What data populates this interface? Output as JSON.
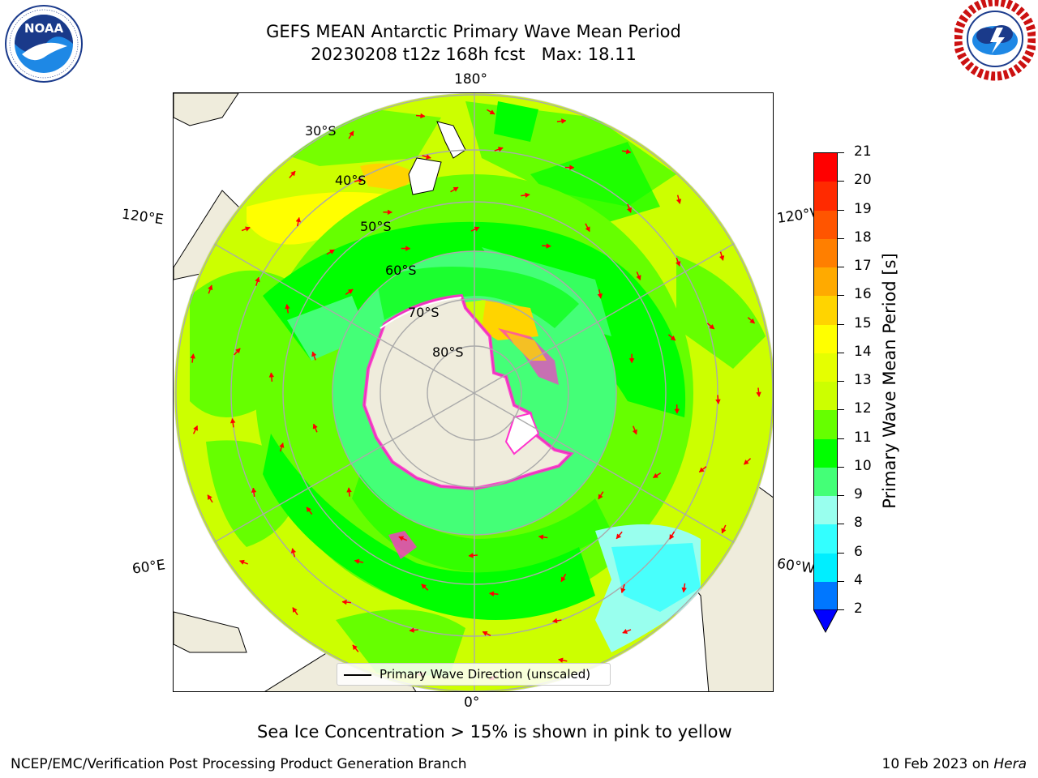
{
  "title": {
    "line1": "GEFS MEAN Antarctic Primary Wave Mean Period",
    "line2": "20230208 t12z 168h fcst   Max: 18.11"
  },
  "logos": {
    "left": {
      "name": "NOAA",
      "ring_text": "NATIONAL OCEANIC AND ATMOSPHERIC ADMINISTRATION · U.S. DEPARTMENT OF COMMERCE"
    },
    "right": {
      "ring_text": "NATIONAL WEATHER SERVICE"
    }
  },
  "map": {
    "projection": "south-polar-stereographic",
    "longitude_labels": {
      "top": "180°",
      "bottom": "0°",
      "upper_left": "120°E",
      "upper_right": "120°W",
      "lower_left": "60°E",
      "lower_right": "60°W"
    },
    "latitude_labels": [
      "30°S",
      "40°S",
      "50°S",
      "60°S",
      "70°S",
      "80°S"
    ],
    "legend": "Primary Wave Direction (unscaled)"
  },
  "colorbar": {
    "label": "Primary Wave Mean Period [s]",
    "ticks": [
      "21",
      "20",
      "19",
      "18",
      "17",
      "16",
      "15",
      "14",
      "13",
      "12",
      "11",
      "10",
      "9",
      "8",
      "6",
      "4",
      "2"
    ],
    "colors_top_to_bottom": [
      "#ff0000",
      "#ff2a00",
      "#ff5500",
      "#ff7f00",
      "#ffaa00",
      "#ffd400",
      "#ffff00",
      "#e5ff00",
      "#ccff00",
      "#66ff00",
      "#00ff00",
      "#44ff77",
      "#99ffee",
      "#33ffff",
      "#00eeff",
      "#0077ff"
    ],
    "extend_color": "#0000ff"
  },
  "chart_data": {
    "type": "heatmap",
    "variable": "Primary Wave Mean Period",
    "units": "s",
    "max": 18.11,
    "color_levels": [
      2,
      4,
      6,
      8,
      9,
      10,
      11,
      12,
      13,
      14,
      15,
      16,
      17,
      18,
      19,
      20,
      21
    ],
    "overlay": "Primary Wave Direction (unscaled)",
    "annotation": "Sea Ice Concentration > 15% is shown in pink to yellow"
  },
  "subtitle": "Sea Ice Concentration > 15% is shown in pink to yellow",
  "footer": {
    "left": "NCEP/EMC/Verification Post Processing Product Generation Branch",
    "date": "10 Feb 2023 on ",
    "host": "Hera"
  }
}
